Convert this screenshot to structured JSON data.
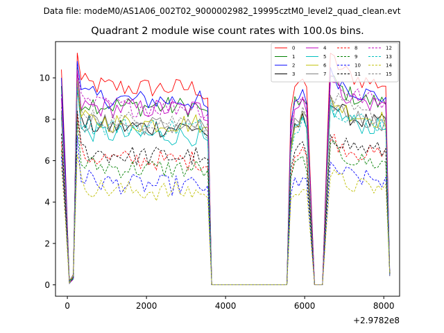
{
  "figure": {
    "suptitle": "Data file: modeM0/AS1A06_002T02_9000002982_19995cztM0_level2_quad_clean.evt"
  },
  "chart_data": {
    "type": "line",
    "title": "Quadrant 2 module wise count rates with 100.0s bins.",
    "xlabel": "",
    "ylabel": "",
    "x_offset_label": "+2.9782e8",
    "xlim": [
      -300,
      8400
    ],
    "ylim": [
      -0.55,
      11.75
    ],
    "xticks": [
      0,
      2000,
      4000,
      6000,
      8000
    ],
    "xtick_labels": [
      "0",
      "2000",
      "4000",
      "6000",
      "8000"
    ],
    "yticks": [
      0,
      2,
      4,
      6,
      8,
      10
    ],
    "ytick_labels": [
      "0",
      "2",
      "4",
      "6",
      "8",
      "10"
    ],
    "legend_location": "upper right",
    "segments": [
      {
        "start": -150,
        "end": 3650
      },
      {
        "start": 3650,
        "end": 5550
      },
      {
        "start": 5550,
        "end": 6250
      },
      {
        "start": 6250,
        "end": 6550
      },
      {
        "start": 6550,
        "end": 8150
      }
    ],
    "series": [
      {
        "name": "0",
        "color": "#ff0000",
        "dash": "solid",
        "levels": [
          10.4,
          9.5,
          9.6
        ],
        "peak": 11.2
      },
      {
        "name": "1",
        "color": "#008000",
        "dash": "solid",
        "levels": [
          9.6,
          8.6,
          8.7
        ],
        "peak": 10.5
      },
      {
        "name": "2",
        "color": "#0000ff",
        "dash": "solid",
        "levels": [
          10.0,
          8.9,
          9.0
        ],
        "peak": 10.8
      },
      {
        "name": "3",
        "color": "#000000",
        "dash": "solid",
        "levels": [
          8.1,
          7.6,
          7.7
        ],
        "peak": 9.4
      },
      {
        "name": "4",
        "color": "#bf00bf",
        "dash": "solid",
        "levels": [
          9.0,
          8.5,
          8.6
        ],
        "peak": 10.3
      },
      {
        "name": "5",
        "color": "#00bfbf",
        "dash": "solid",
        "levels": [
          8.2,
          7.2,
          7.5
        ],
        "peak": 9.6
      },
      {
        "name": "6",
        "color": "#bfbf00",
        "dash": "solid",
        "levels": [
          8.4,
          7.8,
          7.9
        ],
        "peak": 9.9
      },
      {
        "name": "7",
        "color": "#808080",
        "dash": "solid",
        "levels": [
          8.3,
          7.7,
          7.8
        ],
        "peak": 9.7
      },
      {
        "name": "8",
        "color": "#ff0000",
        "dash": "dashed",
        "levels": [
          6.9,
          6.0,
          6.2
        ],
        "peak": 8.2
      },
      {
        "name": "9",
        "color": "#008000",
        "dash": "dashed",
        "levels": [
          6.5,
          5.6,
          5.8
        ],
        "peak": 7.9
      },
      {
        "name": "10",
        "color": "#0000ff",
        "dash": "dashed",
        "levels": [
          6.2,
          4.8,
          5.0
        ],
        "peak": 7.2
      },
      {
        "name": "11",
        "color": "#000000",
        "dash": "dashed",
        "levels": [
          7.3,
          6.2,
          6.4
        ],
        "peak": 8.4
      },
      {
        "name": "12",
        "color": "#bf00bf",
        "dash": "dashed",
        "levels": [
          9.2,
          8.6,
          8.8
        ],
        "peak": 10.4
      },
      {
        "name": "13",
        "color": "#00bfbf",
        "dash": "dashed",
        "levels": [
          8.4,
          7.6,
          7.7
        ],
        "peak": 9.5
      },
      {
        "name": "14",
        "color": "#bfbf00",
        "dash": "dashed",
        "levels": [
          5.7,
          4.5,
          4.6
        ],
        "peak": 6.3
      },
      {
        "name": "15",
        "color": "#808080",
        "dash": "dashed",
        "levels": [
          8.6,
          7.9,
          8.0
        ],
        "peak": 9.8
      }
    ]
  }
}
